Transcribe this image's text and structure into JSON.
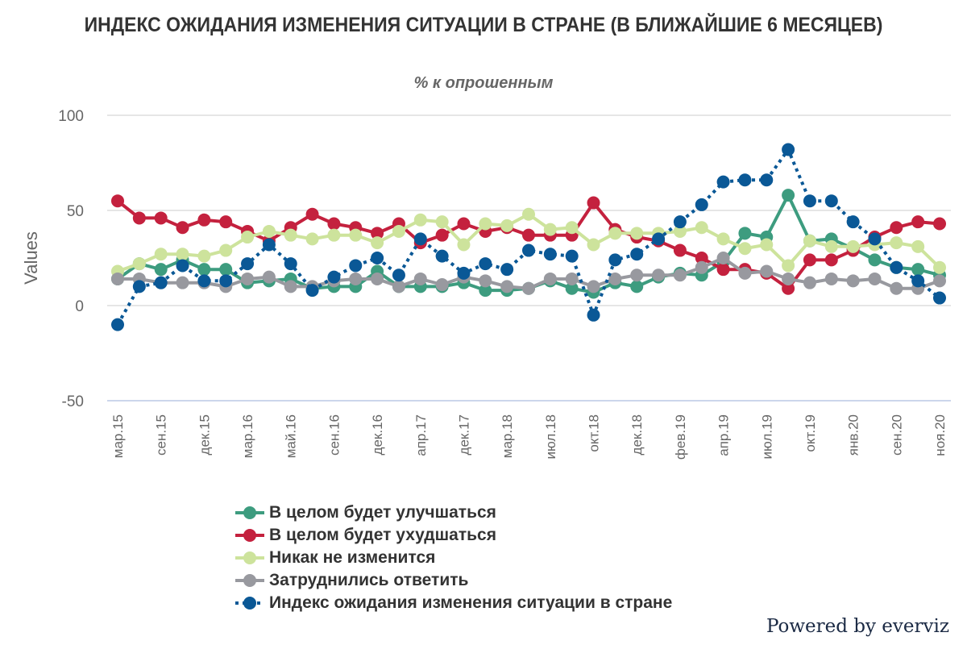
{
  "title": "ИНДЕКС ОЖИДАНИЯ ИЗМЕНЕНИЯ СИТУАЦИИ В СТРАНЕ (В БЛИЖАЙШИЕ 6 МЕСЯЦЕВ)",
  "subtitle": "% к опрошенным",
  "credits": "Powered by everviz",
  "chart_data": {
    "type": "line",
    "title": "ИНДЕКС ОЖИДАНИЯ ИЗМЕНЕНИЯ СИТУАЦИИ В СТРАНЕ (В БЛИЖАЙШИЕ 6 МЕСЯЦЕВ)",
    "subtitle": "% к опрошенным",
    "xlabel": "",
    "ylabel": "Values",
    "ylim": [
      -50,
      100
    ],
    "yticks": [
      100,
      50,
      0,
      -50
    ],
    "grid": true,
    "legend_position": "bottom",
    "point_count": 39,
    "xtick_labels": [
      "мар.15",
      "сен.15",
      "дек.15",
      "мар.16",
      "май.16",
      "сен.16",
      "дек.16",
      "апр.17",
      "дек.17",
      "мар.18",
      "июл.18",
      "окт.18",
      "дек.18",
      "фев.19",
      "апр.19",
      "июл.19",
      "окт.19",
      "янв.20",
      "сен.20",
      "ноя.20"
    ],
    "xtick_every": 2,
    "series": [
      {
        "name": "В целом будет улучшаться",
        "color": "#3d9c7f",
        "dashed": false,
        "values": [
          14,
          22,
          19,
          24,
          19,
          19,
          12,
          13,
          14,
          9,
          10,
          10,
          18,
          10,
          10,
          10,
          12,
          8,
          8,
          9,
          13,
          9,
          7,
          12,
          10,
          15,
          17,
          16,
          23,
          38,
          36,
          58,
          34,
          35,
          30,
          24,
          20,
          19,
          16
        ]
      },
      {
        "name": "В целом будет ухудшаться",
        "color": "#c4213e",
        "dashed": false,
        "values": [
          55,
          46,
          46,
          41,
          45,
          44,
          39,
          34,
          41,
          48,
          43,
          41,
          38,
          43,
          33,
          37,
          43,
          39,
          41,
          37,
          37,
          37,
          54,
          40,
          36,
          34,
          29,
          25,
          19,
          19,
          17,
          9,
          24,
          24,
          29,
          36,
          41,
          44,
          43
        ]
      },
      {
        "name": "Никак не изменится",
        "color": "#cde39c",
        "dashed": false,
        "values": [
          18,
          22,
          27,
          27,
          26,
          29,
          36,
          39,
          37,
          35,
          37,
          37,
          33,
          39,
          45,
          44,
          32,
          43,
          42,
          48,
          40,
          41,
          32,
          38,
          38,
          38,
          39,
          41,
          35,
          30,
          32,
          21,
          34,
          31,
          31,
          32,
          33,
          31,
          20
        ]
      },
      {
        "name": "Затруднились ответить",
        "color": "#98999f",
        "dashed": false,
        "values": [
          14,
          14,
          12,
          12,
          12,
          10,
          14,
          15,
          10,
          10,
          13,
          14,
          14,
          10,
          14,
          11,
          15,
          13,
          10,
          9,
          14,
          14,
          10,
          14,
          16,
          16,
          16,
          20,
          25,
          17,
          18,
          14,
          12,
          14,
          13,
          14,
          9,
          9,
          13
        ]
      },
      {
        "name": "Индекс ожидания изменения ситуации в стране",
        "color": "#0a5896",
        "dashed": true,
        "values": [
          -10,
          10,
          12,
          21,
          13,
          13,
          22,
          32,
          22,
          8,
          15,
          21,
          25,
          16,
          35,
          26,
          17,
          22,
          19,
          29,
          27,
          26,
          -5,
          24,
          27,
          35,
          44,
          53,
          65,
          66,
          66,
          82,
          55,
          55,
          44,
          35,
          20,
          13,
          4
        ]
      }
    ]
  }
}
